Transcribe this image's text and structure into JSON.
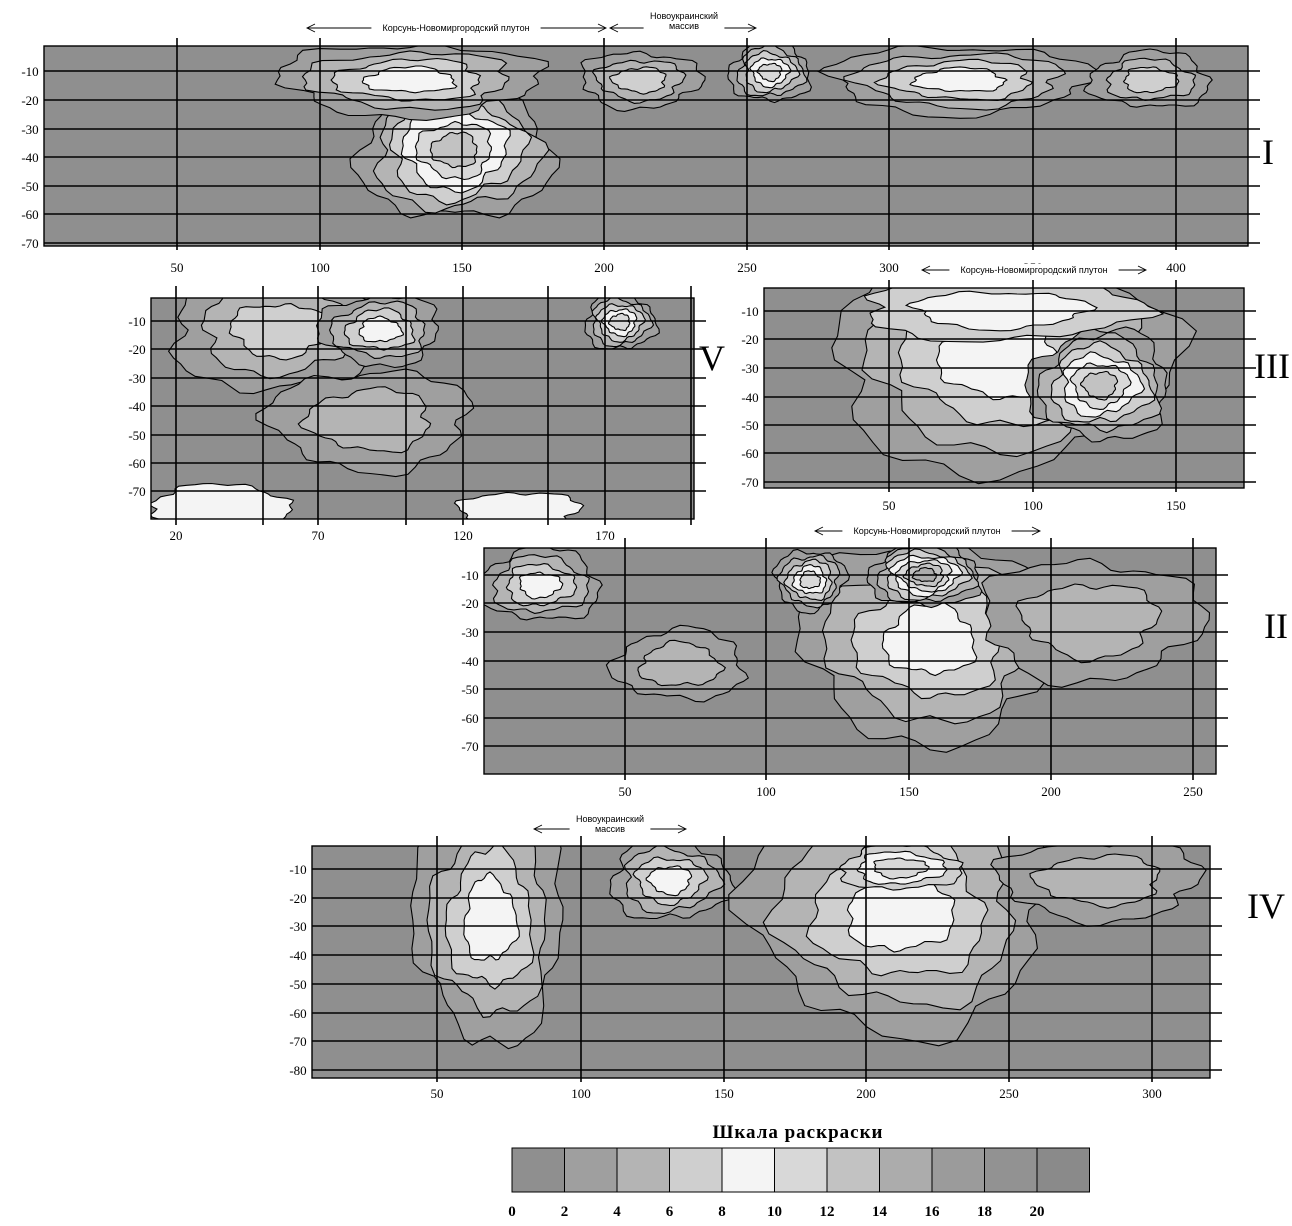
{
  "colors": {
    "levels": [
      "#8f8f8f",
      "#9f9f9f",
      "#b4b4b4",
      "#cfcfcf",
      "#f4f4f4",
      "#d8d8d8",
      "#c2c2c2",
      "#acacac",
      "#9b9b9b",
      "#929292",
      "#8a8a8a"
    ],
    "line": "#000000",
    "grid": "#000000"
  },
  "chart_data": [
    {
      "type": "heatmap",
      "panel_label": "I",
      "ytick_labels": [
        "-10",
        "-20",
        "-30",
        "-40",
        "-50",
        "-60",
        "-70"
      ],
      "xtick_labels": [
        "50",
        "100",
        "150",
        "200",
        "250",
        "300",
        "350",
        "400"
      ],
      "annotations": [
        {
          "text": "Корсунь-Новомиргородский плутон"
        },
        {
          "text": "Новоукраинский",
          "text2": "массив"
        }
      ]
    },
    {
      "type": "heatmap",
      "panel_label": "V",
      "ytick_labels": [
        "-10",
        "-20",
        "-30",
        "-40",
        "-50",
        "-60",
        "-70"
      ],
      "xtick_labels": [
        "20",
        "70",
        "120",
        "170"
      ],
      "annotations": []
    },
    {
      "type": "heatmap",
      "panel_label": "III",
      "ytick_labels": [
        "-10",
        "-20",
        "-30",
        "-40",
        "-50",
        "-60",
        "-70"
      ],
      "xtick_labels": [
        "50",
        "100",
        "150"
      ],
      "annotations": [
        {
          "text": "Корсунь-Новомиргородский плутон"
        }
      ]
    },
    {
      "type": "heatmap",
      "panel_label": "II",
      "ytick_labels": [
        "-10",
        "-20",
        "-30",
        "-40",
        "-50",
        "-60",
        "-70"
      ],
      "xtick_labels": [
        "50",
        "100",
        "150",
        "200",
        "250"
      ],
      "annotations": [
        {
          "text": "Корсунь-Новомиргородский плутон"
        }
      ]
    },
    {
      "type": "heatmap",
      "panel_label": "IV",
      "ytick_labels": [
        "-10",
        "-20",
        "-30",
        "-40",
        "-50",
        "-60",
        "-70",
        "-80"
      ],
      "xtick_labels": [
        "50",
        "100",
        "150",
        "200",
        "250",
        "300"
      ],
      "annotations": [
        {
          "text": "Новоукраинский",
          "text2": "массив"
        }
      ]
    }
  ],
  "colorbar": {
    "title": "Шкала раскраски",
    "tick_labels": [
      "0",
      "2",
      "4",
      "6",
      "8",
      "10",
      "12",
      "14",
      "16",
      "18",
      "20"
    ]
  }
}
